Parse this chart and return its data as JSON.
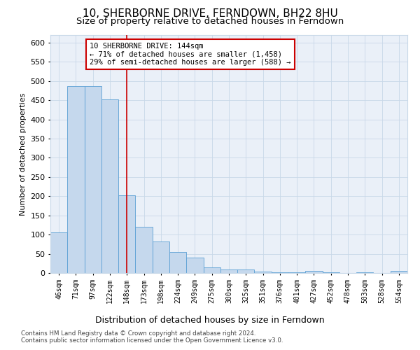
{
  "title": "10, SHERBORNE DRIVE, FERNDOWN, BH22 8HU",
  "subtitle": "Size of property relative to detached houses in Ferndown",
  "xlabel_dist": "Distribution of detached houses by size in Ferndown",
  "ylabel": "Number of detached properties",
  "categories": [
    "46sqm",
    "71sqm",
    "97sqm",
    "122sqm",
    "148sqm",
    "173sqm",
    "198sqm",
    "224sqm",
    "249sqm",
    "275sqm",
    "300sqm",
    "325sqm",
    "351sqm",
    "376sqm",
    "401sqm",
    "427sqm",
    "452sqm",
    "478sqm",
    "503sqm",
    "528sqm",
    "554sqm"
  ],
  "values": [
    105,
    487,
    487,
    453,
    202,
    120,
    82,
    55,
    40,
    14,
    9,
    10,
    3,
    1,
    1,
    5,
    1,
    0,
    1,
    0,
    6
  ],
  "bar_color": "#c5d8ed",
  "bar_edge_color": "#5a9fd4",
  "vline_x": 4.0,
  "vline_color": "#cc0000",
  "annotation_text": "10 SHERBORNE DRIVE: 144sqm\n← 71% of detached houses are smaller (1,458)\n29% of semi-detached houses are larger (588) →",
  "annotation_box_color": "#ffffff",
  "annotation_box_edge": "#cc0000",
  "ylim": [
    0,
    620
  ],
  "yticks": [
    0,
    50,
    100,
    150,
    200,
    250,
    300,
    350,
    400,
    450,
    500,
    550,
    600
  ],
  "footer1": "Contains HM Land Registry data © Crown copyright and database right 2024.",
  "footer2": "Contains public sector information licensed under the Open Government Licence v3.0.",
  "title_fontsize": 11,
  "subtitle_fontsize": 9.5,
  "ax_facecolor": "#eaf0f8",
  "background_color": "#ffffff",
  "grid_color": "#c8d8e8"
}
